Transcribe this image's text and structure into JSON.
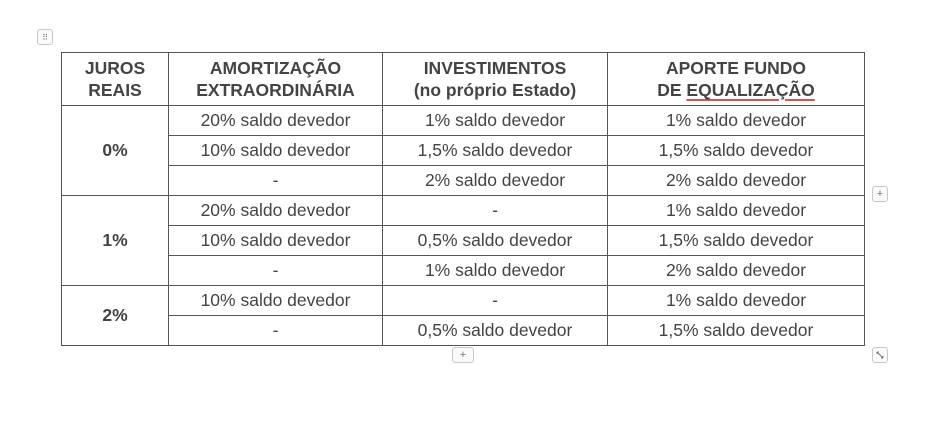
{
  "controls": {
    "add_column": "+",
    "add_row": "+"
  },
  "table": {
    "headers": [
      {
        "line1": "JUROS",
        "line2": "REAIS"
      },
      {
        "line1": "AMORTIZAÇÃO",
        "line2": "EXTRAORDINÁRIA"
      },
      {
        "line1": "INVESTIMENTOS",
        "line2": "(no próprio Estado)"
      },
      {
        "line1": "APORTE FUNDO",
        "line2_prefix": "DE ",
        "line2_underlined": "EQUALIZAÇÃO"
      }
    ],
    "groups": [
      {
        "rate": "0%",
        "rows": [
          [
            "20% saldo devedor",
            "1% saldo devedor",
            "1% saldo devedor"
          ],
          [
            "10% saldo devedor",
            "1,5% saldo devedor",
            "1,5% saldo devedor"
          ],
          [
            "-",
            "2% saldo devedor",
            "2% saldo devedor"
          ]
        ]
      },
      {
        "rate": "1%",
        "rows": [
          [
            "20% saldo devedor",
            "-",
            "1% saldo devedor"
          ],
          [
            "10% saldo devedor",
            "0,5% saldo devedor",
            "1,5% saldo devedor"
          ],
          [
            "-",
            "1% saldo devedor",
            "2% saldo devedor"
          ]
        ]
      },
      {
        "rate": "2%",
        "rows": [
          [
            "10% saldo devedor",
            "-",
            "1% saldo devedor"
          ],
          [
            "-",
            "0,5% saldo devedor",
            "1,5% saldo devedor"
          ]
        ]
      }
    ]
  }
}
